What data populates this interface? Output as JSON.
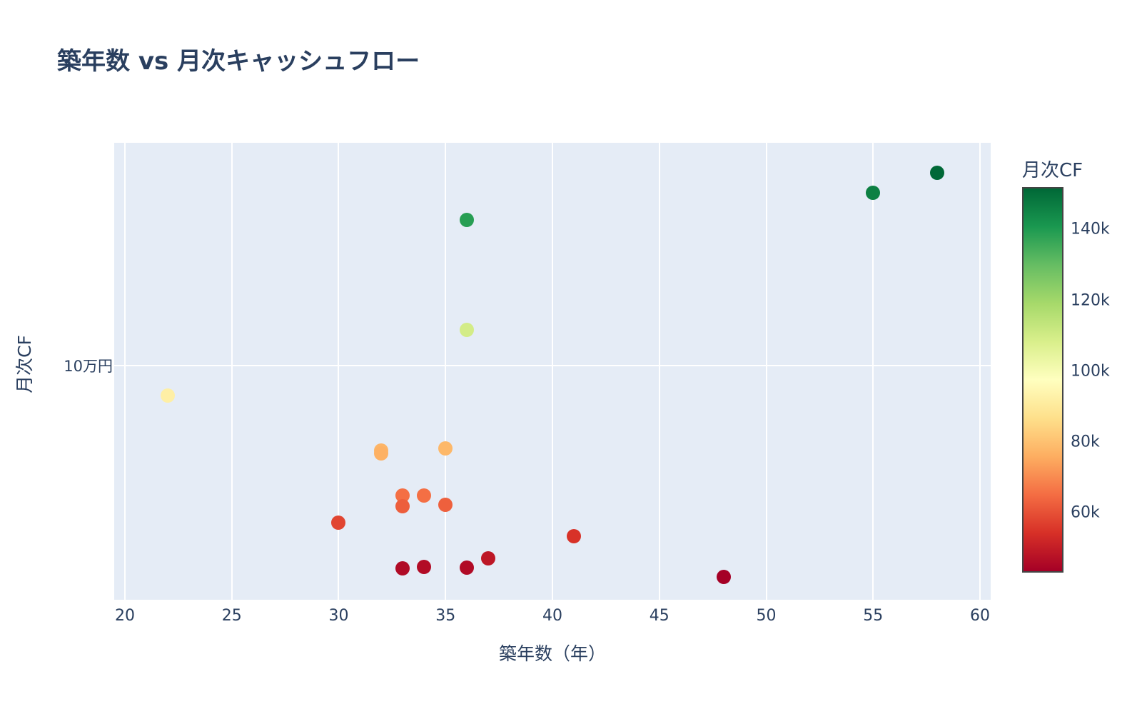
{
  "title": "築年数 vs 月次キャッシュフロー",
  "xaxis": {
    "label": "築年数（年）",
    "ticks": [
      20,
      25,
      30,
      35,
      40,
      45,
      50,
      55,
      60
    ],
    "range": [
      19.5,
      60.5
    ]
  },
  "yaxis": {
    "label": "月次CF",
    "ticks": [
      {
        "value": 100000,
        "label": "10万円"
      }
    ],
    "range": [
      37000,
      160000
    ]
  },
  "colorbar": {
    "title": "月次CF",
    "ticks": [
      {
        "value": 140000,
        "label": "140k"
      },
      {
        "value": 120000,
        "label": "120k"
      },
      {
        "value": 100000,
        "label": "100k"
      },
      {
        "value": 80000,
        "label": "80k"
      },
      {
        "value": 60000,
        "label": "60k"
      }
    ],
    "range": [
      43000,
      152000
    ],
    "colorscale": "RdYlGn",
    "colors": [
      "#a50026",
      "#d73027",
      "#f46d43",
      "#fdae61",
      "#fee08b",
      "#ffffbf",
      "#d9ef8b",
      "#a6d96a",
      "#66bd63",
      "#1a9850",
      "#006837"
    ]
  },
  "chart_data": {
    "type": "scatter",
    "title": "築年数 vs 月次キャッシュフロー",
    "xlabel": "築年数（年）",
    "ylabel": "月次CF",
    "xlim": [
      19.5,
      60.5
    ],
    "ylim": [
      37000,
      160000
    ],
    "grid": true,
    "legend": "colorbar right (月次CF)",
    "points": [
      {
        "x": 22,
        "y": 92000
      },
      {
        "x": 32,
        "y": 77200
      },
      {
        "x": 32,
        "y": 76400
      },
      {
        "x": 35,
        "y": 77800
      },
      {
        "x": 33,
        "y": 65100
      },
      {
        "x": 34,
        "y": 65100
      },
      {
        "x": 33,
        "y": 62100
      },
      {
        "x": 35,
        "y": 62500
      },
      {
        "x": 30,
        "y": 57700
      },
      {
        "x": 41,
        "y": 54200
      },
      {
        "x": 37,
        "y": 48200
      },
      {
        "x": 33,
        "y": 45400
      },
      {
        "x": 34,
        "y": 45800
      },
      {
        "x": 36,
        "y": 45600
      },
      {
        "x": 48,
        "y": 43100
      },
      {
        "x": 36,
        "y": 109700
      },
      {
        "x": 36,
        "y": 139300
      },
      {
        "x": 55,
        "y": 146600
      },
      {
        "x": 58,
        "y": 152000
      }
    ]
  }
}
